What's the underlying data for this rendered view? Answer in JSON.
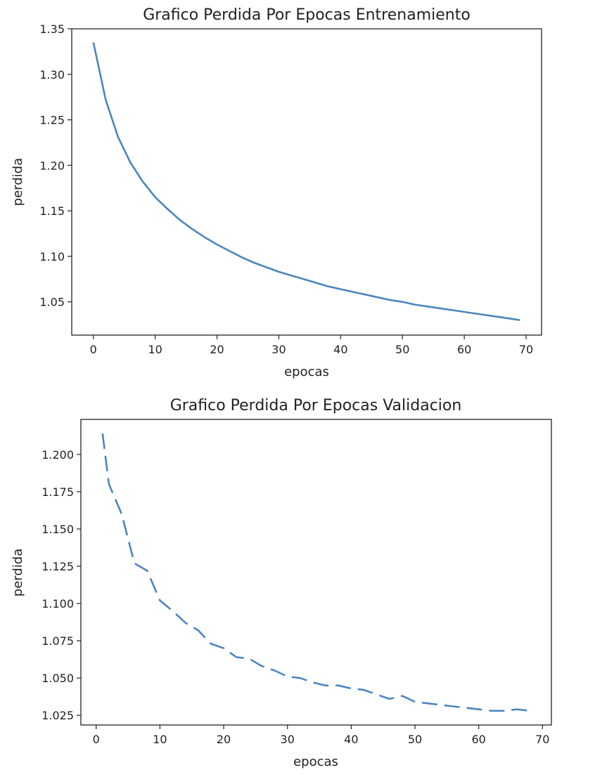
{
  "chart_data": [
    {
      "type": "line",
      "title": "Grafico Perdida Por Epocas Entrenamiento",
      "xlabel": "epocas",
      "ylabel": "perdida",
      "xlim": [
        -3.5,
        72.5
      ],
      "ylim": [
        1.0135,
        1.35
      ],
      "xticks": [
        0,
        10,
        20,
        30,
        40,
        50,
        60,
        70
      ],
      "yticks": [
        1.05,
        1.1,
        1.15,
        1.2,
        1.25,
        1.3,
        1.35
      ],
      "ytick_labels": [
        "1.05",
        "1.10",
        "1.15",
        "1.20",
        "1.25",
        "1.30",
        "1.35"
      ],
      "line_style": "solid",
      "color": "#4a86c0",
      "grid": false,
      "series": [
        {
          "x": [
            0,
            2,
            4,
            6,
            8,
            10,
            12,
            14,
            16,
            18,
            20,
            22,
            24,
            26,
            28,
            30,
            32,
            34,
            36,
            38,
            40,
            42,
            44,
            46,
            48,
            50,
            52,
            54,
            56,
            58,
            60,
            62,
            64,
            66,
            68,
            69
          ],
          "values": [
            1.335,
            1.272,
            1.231,
            1.203,
            1.182,
            1.165,
            1.152,
            1.14,
            1.13,
            1.121,
            1.113,
            1.106,
            1.099,
            1.093,
            1.088,
            1.083,
            1.079,
            1.075,
            1.071,
            1.067,
            1.064,
            1.061,
            1.058,
            1.055,
            1.052,
            1.05,
            1.047,
            1.045,
            1.043,
            1.041,
            1.039,
            1.037,
            1.035,
            1.033,
            1.031,
            1.03
          ]
        }
      ]
    },
    {
      "type": "line",
      "title": "Grafico Perdida Por Epocas Validacion",
      "xlabel": "epocas",
      "ylabel": "perdida",
      "xlim": [
        -2.4,
        71.4
      ],
      "ylim": [
        1.0185,
        1.2235
      ],
      "xticks": [
        0,
        10,
        20,
        30,
        40,
        50,
        60,
        70
      ],
      "yticks": [
        1.025,
        1.05,
        1.075,
        1.1,
        1.125,
        1.15,
        1.175,
        1.2
      ],
      "ytick_labels": [
        "1.025",
        "1.050",
        "1.075",
        "1.100",
        "1.125",
        "1.150",
        "1.175",
        "1.200"
      ],
      "line_style": "dashed",
      "color": "#4a86c0",
      "grid": false,
      "series": [
        {
          "x": [
            1,
            2,
            4,
            6,
            8,
            10,
            12,
            14,
            16,
            18,
            20,
            22,
            24,
            26,
            28,
            30,
            32,
            34,
            36,
            38,
            40,
            42,
            44,
            46,
            48,
            50,
            52,
            54,
            56,
            58,
            60,
            62,
            64,
            66,
            68
          ],
          "values": [
            1.214,
            1.18,
            1.16,
            1.127,
            1.122,
            1.102,
            1.095,
            1.087,
            1.082,
            1.073,
            1.07,
            1.064,
            1.063,
            1.058,
            1.055,
            1.051,
            1.05,
            1.047,
            1.045,
            1.045,
            1.043,
            1.042,
            1.039,
            1.036,
            1.038,
            1.034,
            1.033,
            1.032,
            1.031,
            1.03,
            1.029,
            1.028,
            1.028,
            1.029,
            1.028
          ]
        }
      ]
    }
  ]
}
